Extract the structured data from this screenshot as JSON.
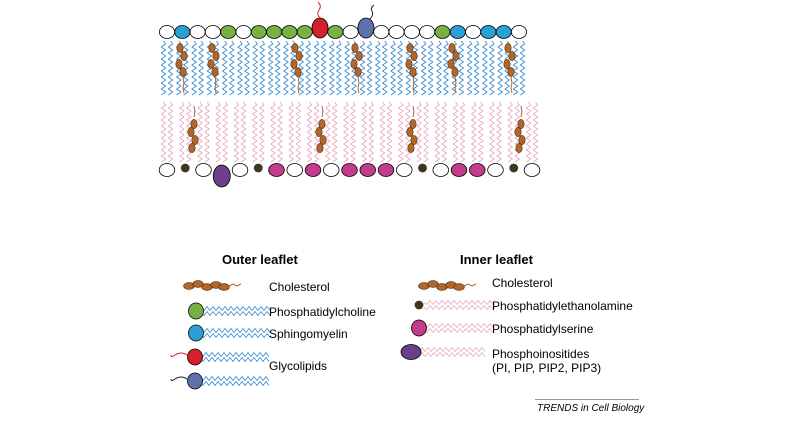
{
  "colors": {
    "phosphatidylcholine": "#77b043",
    "sphingomyelin": "#2aa0d6",
    "glycolipid_red": "#d6202e",
    "glycolipid_blue": "#5f71ad",
    "cholesterol": "#b3662a",
    "phosphatidylethanolamine": "#3b3924",
    "phosphatidylserine": "#c43c8c",
    "phosphoinositides": "#6d3e8b",
    "outer_tail": "#2f86cf",
    "inner_tail": "#e7a6bd",
    "neutral_head": "#ffffff"
  },
  "membrane": {
    "outer_heads": [
      "neutral",
      "sphingomyelin",
      "neutral",
      "neutral",
      "phosphatidylcholine",
      "neutral",
      "phosphatidylcholine",
      "phosphatidylcholine",
      "phosphatidylcholine",
      "phosphatidylcholine",
      "glycolipid_red",
      "phosphatidylcholine",
      "neutral",
      "glycolipid_blue",
      "neutral",
      "neutral",
      "neutral",
      "neutral",
      "phosphatidylcholine",
      "sphingomyelin",
      "neutral",
      "sphingomyelin",
      "sphingomyelin",
      "neutral"
    ],
    "inner_heads": [
      "neutral",
      "phosphatidylethanolamine",
      "neutral",
      "phosphoinositides",
      "neutral",
      "phosphatidylethanolamine",
      "phosphatidylserine",
      "neutral",
      "phosphatidylserine",
      "neutral",
      "phosphatidylserine",
      "phosphatidylserine",
      "phosphatidylserine",
      "neutral",
      "phosphatidylethanolamine",
      "neutral",
      "phosphatidylserine",
      "phosphatidylserine",
      "neutral",
      "phosphatidylethanolamine",
      "neutral"
    ]
  },
  "legend": {
    "outer": {
      "title": "Outer leaflet",
      "items": [
        {
          "label": "Cholesterol",
          "icon": "cholesterol-icon"
        },
        {
          "label": "Phosphatidylcholine",
          "icon": "phosphatidylcholine-lipid-icon"
        },
        {
          "label": "Sphingomyelin",
          "icon": "sphingomyelin-lipid-icon"
        },
        {
          "label": "Glycolipids",
          "icon": "glycolipid-icon"
        }
      ]
    },
    "inner": {
      "title": "Inner leaflet",
      "items": [
        {
          "label": "Cholesterol",
          "icon": "cholesterol-icon"
        },
        {
          "label": "Phosphatidylethanolamine",
          "icon": "phosphatidylethanolamine-lipid-icon"
        },
        {
          "label": "Phosphatidylserine",
          "icon": "phosphatidylserine-lipid-icon"
        },
        {
          "label": "Phosphoinositides",
          "label_line2": "(PI, PIP, PIP2, PIP3)",
          "icon": "phosphoinositide-lipid-icon"
        }
      ]
    }
  },
  "credit": "TRENDS in Cell Biology"
}
